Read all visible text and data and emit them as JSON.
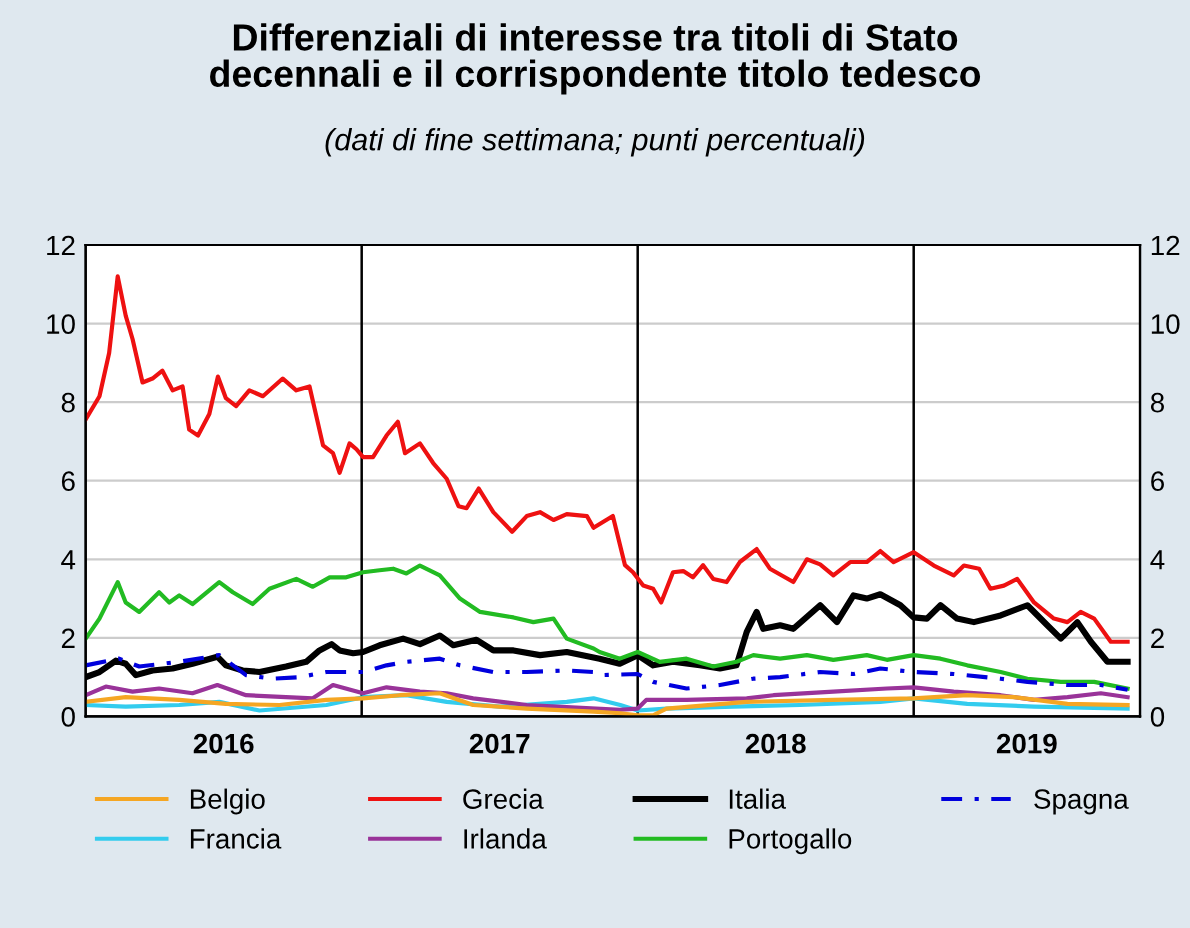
{
  "chart_data": {
    "type": "line",
    "title": "Differenziali di interesse tra titoli di Stato\ndecennali e il corrispondente titolo tedesco",
    "subtitle": "(dati di fine settimana; punti percentuali)",
    "xlim": [
      2016,
      2019.82
    ],
    "xticks": [
      {
        "value": 2016.5,
        "label": "2016"
      },
      {
        "value": 2017.5,
        "label": "2017"
      },
      {
        "value": 2018.5,
        "label": "2018"
      },
      {
        "value": 2019.41,
        "label": "2019"
      }
    ],
    "ylim": [
      0,
      12
    ],
    "yticks": [
      0,
      2,
      4,
      6,
      8,
      10,
      12
    ],
    "y2lim": [
      0,
      12
    ],
    "y2ticks": [
      0,
      2,
      4,
      6,
      8,
      10,
      12
    ],
    "grid": "y",
    "legend": "bottom",
    "ref_lines": [
      {
        "axis": "x",
        "value": 2017,
        "label": null,
        "color": "#000000"
      },
      {
        "axis": "x",
        "value": 2018,
        "label": null,
        "color": "#000000"
      },
      {
        "axis": "x",
        "value": 2019,
        "label": null,
        "color": "#000000"
      }
    ],
    "series": [
      {
        "name": "Belgio",
        "color": "#f5a623",
        "x": [
          2016.0,
          2016.145,
          2016.339,
          2016.508,
          2016.702,
          2016.872,
          2017.005,
          2017.138,
          2017.283,
          2017.404,
          2017.598,
          2017.84,
          2017.937,
          2018.0,
          2018.056,
          2018.104,
          2018.395,
          2018.709,
          2019.0,
          2019.194,
          2019.363,
          2019.557,
          2019.775
        ],
        "values": [
          0.37,
          0.49,
          0.42,
          0.32,
          0.29,
          0.42,
          0.46,
          0.54,
          0.59,
          0.29,
          0.2,
          0.12,
          0.08,
          0.03,
          0.03,
          0.2,
          0.37,
          0.42,
          0.46,
          0.54,
          0.49,
          0.32,
          0.29
        ]
      },
      {
        "name": "Francia",
        "color": "#33ccee",
        "x": [
          2016.0,
          2016.145,
          2016.339,
          2016.484,
          2016.63,
          2016.872,
          2017.005,
          2017.162,
          2017.308,
          2017.501,
          2017.743,
          2017.84,
          2017.937,
          2018.0,
          2018.104,
          2018.346,
          2018.588,
          2018.879,
          2019.0,
          2019.194,
          2019.436,
          2019.775
        ],
        "values": [
          0.29,
          0.25,
          0.29,
          0.37,
          0.15,
          0.29,
          0.49,
          0.54,
          0.37,
          0.25,
          0.37,
          0.46,
          0.29,
          0.15,
          0.2,
          0.25,
          0.29,
          0.37,
          0.46,
          0.32,
          0.25,
          0.2
        ]
      },
      {
        "name": "Grecia",
        "color": "#ee1111",
        "x": [
          2016.0,
          2016.05,
          2016.085,
          2016.116,
          2016.145,
          2016.17,
          2016.206,
          2016.242,
          2016.278,
          2016.315,
          2016.351,
          2016.375,
          2016.407,
          2016.448,
          2016.479,
          2016.508,
          2016.545,
          2016.593,
          2016.642,
          2016.714,
          2016.763,
          2016.811,
          2016.86,
          2016.896,
          2016.92,
          2016.956,
          2016.981,
          2017.005,
          2017.041,
          2017.09,
          2017.131,
          2017.157,
          2017.211,
          2017.259,
          2017.308,
          2017.351,
          2017.38,
          2017.424,
          2017.477,
          2017.545,
          2017.598,
          2017.646,
          2017.695,
          2017.743,
          2017.816,
          2017.84,
          2017.91,
          2017.954,
          2017.983,
          2018.02,
          2018.056,
          2018.085,
          2018.128,
          2018.165,
          2018.2,
          2018.237,
          2018.274,
          2018.322,
          2018.37,
          2018.431,
          2018.479,
          2018.564,
          2018.613,
          2018.661,
          2018.709,
          2018.77,
          2018.83,
          2018.879,
          2018.927,
          2019.0,
          2019.073,
          2019.145,
          2019.182,
          2019.237,
          2019.278,
          2019.327,
          2019.375,
          2019.436,
          2019.508,
          2019.557,
          2019.605,
          2019.654,
          2019.714,
          2019.775
        ],
        "values": [
          7.56,
          8.15,
          9.25,
          11.2,
          10.2,
          9.6,
          8.5,
          8.6,
          8.8,
          8.3,
          8.4,
          7.3,
          7.15,
          7.7,
          8.65,
          8.1,
          7.9,
          8.3,
          8.15,
          8.6,
          8.3,
          8.4,
          6.9,
          6.7,
          6.2,
          6.95,
          6.8,
          6.6,
          6.6,
          7.15,
          7.5,
          6.7,
          6.95,
          6.45,
          6.05,
          5.35,
          5.3,
          5.8,
          5.2,
          4.7,
          5.1,
          5.2,
          5.0,
          5.15,
          5.1,
          4.8,
          5.1,
          3.85,
          3.67,
          3.33,
          3.25,
          2.9,
          3.67,
          3.7,
          3.54,
          3.85,
          3.5,
          3.42,
          3.93,
          4.26,
          3.76,
          3.42,
          4.0,
          3.87,
          3.59,
          3.93,
          3.93,
          4.21,
          3.93,
          4.18,
          3.84,
          3.59,
          3.84,
          3.76,
          3.25,
          3.33,
          3.5,
          2.9,
          2.49,
          2.4,
          2.66,
          2.49,
          1.9,
          1.9
        ]
      },
      {
        "name": "Irlanda",
        "color": "#993399",
        "x": [
          2016.0,
          2016.073,
          2016.17,
          2016.266,
          2016.387,
          2016.477,
          2016.581,
          2016.726,
          2016.823,
          2016.896,
          2017.005,
          2017.09,
          2017.211,
          2017.308,
          2017.404,
          2017.598,
          2017.743,
          2017.937,
          2018.0,
          2018.031,
          2018.177,
          2018.395,
          2018.492,
          2018.709,
          2018.903,
          2019.0,
          2019.145,
          2019.315,
          2019.436,
          2019.557,
          2019.678,
          2019.775
        ],
        "values": [
          0.54,
          0.76,
          0.63,
          0.71,
          0.59,
          0.8,
          0.54,
          0.49,
          0.46,
          0.8,
          0.59,
          0.74,
          0.63,
          0.59,
          0.46,
          0.29,
          0.24,
          0.17,
          0.2,
          0.42,
          0.42,
          0.46,
          0.54,
          0.63,
          0.71,
          0.74,
          0.63,
          0.54,
          0.42,
          0.49,
          0.59,
          0.49
        ]
      },
      {
        "name": "Italia",
        "color": "#000000",
        "x": [
          2016.0,
          2016.05,
          2016.109,
          2016.145,
          2016.182,
          2016.242,
          2016.315,
          2016.387,
          2016.477,
          2016.508,
          2016.569,
          2016.63,
          2016.726,
          2016.799,
          2016.847,
          2016.891,
          2016.92,
          2016.969,
          2017.005,
          2017.065,
          2017.15,
          2017.211,
          2017.283,
          2017.332,
          2017.416,
          2017.477,
          2017.55,
          2017.646,
          2017.743,
          2017.862,
          2017.935,
          2018.0,
          2018.056,
          2018.128,
          2018.225,
          2018.298,
          2018.358,
          2018.395,
          2018.431,
          2018.455,
          2018.516,
          2018.564,
          2018.661,
          2018.722,
          2018.782,
          2018.83,
          2018.879,
          2018.952,
          2019.0,
          2019.048,
          2019.097,
          2019.157,
          2019.218,
          2019.315,
          2019.412,
          2019.484,
          2019.533,
          2019.593,
          2019.642,
          2019.702,
          2019.775
        ],
        "values": [
          1.0,
          1.13,
          1.42,
          1.34,
          1.05,
          1.17,
          1.22,
          1.34,
          1.52,
          1.3,
          1.17,
          1.13,
          1.27,
          1.39,
          1.68,
          1.84,
          1.68,
          1.61,
          1.64,
          1.81,
          1.98,
          1.84,
          2.06,
          1.81,
          1.95,
          1.68,
          1.68,
          1.56,
          1.64,
          1.47,
          1.34,
          1.56,
          1.3,
          1.39,
          1.3,
          1.22,
          1.3,
          2.15,
          2.66,
          2.23,
          2.32,
          2.23,
          2.83,
          2.4,
          3.08,
          3.0,
          3.11,
          2.83,
          2.52,
          2.49,
          2.83,
          2.49,
          2.4,
          2.57,
          2.83,
          2.32,
          1.98,
          2.4,
          1.9,
          1.39,
          1.39
        ]
      },
      {
        "name": "Portogallo",
        "color": "#22bb22",
        "x": [
          2016.0,
          2016.05,
          2016.116,
          2016.145,
          2016.194,
          2016.266,
          2016.303,
          2016.339,
          2016.387,
          2016.484,
          2016.533,
          2016.605,
          2016.666,
          2016.763,
          2016.823,
          2016.884,
          2016.944,
          2017.005,
          2017.065,
          2017.114,
          2017.162,
          2017.211,
          2017.283,
          2017.356,
          2017.429,
          2017.55,
          2017.622,
          2017.695,
          2017.743,
          2017.84,
          2017.862,
          2017.935,
          2018.0,
          2018.08,
          2018.177,
          2018.274,
          2018.358,
          2018.419,
          2018.516,
          2018.613,
          2018.709,
          2018.83,
          2018.903,
          2019.0,
          2019.097,
          2019.194,
          2019.315,
          2019.412,
          2019.533,
          2019.654,
          2019.775
        ],
        "values": [
          1.98,
          2.49,
          3.42,
          2.9,
          2.66,
          3.16,
          2.9,
          3.08,
          2.86,
          3.42,
          3.16,
          2.86,
          3.25,
          3.5,
          3.3,
          3.54,
          3.54,
          3.67,
          3.72,
          3.76,
          3.64,
          3.84,
          3.59,
          3.0,
          2.66,
          2.52,
          2.4,
          2.49,
          1.98,
          1.73,
          1.64,
          1.47,
          1.64,
          1.39,
          1.47,
          1.27,
          1.39,
          1.56,
          1.47,
          1.56,
          1.44,
          1.56,
          1.44,
          1.56,
          1.47,
          1.3,
          1.13,
          0.96,
          0.88,
          0.88,
          0.71
        ]
      },
      {
        "name": "Spagna",
        "color": "#0000dd",
        "line_style": "dashed",
        "x": [
          2016.0,
          2016.121,
          2016.194,
          2016.339,
          2016.484,
          2016.581,
          2016.678,
          2016.775,
          2016.872,
          2017.005,
          2017.09,
          2017.162,
          2017.283,
          2017.356,
          2017.477,
          2017.598,
          2017.743,
          2017.84,
          2017.862,
          2018.0,
          2018.056,
          2018.177,
          2018.298,
          2018.419,
          2018.516,
          2018.661,
          2018.782,
          2018.879,
          2019.0,
          2019.145,
          2019.315,
          2019.412,
          2019.557,
          2019.678,
          2019.775
        ],
        "values": [
          1.3,
          1.47,
          1.27,
          1.39,
          1.56,
          1.05,
          0.96,
          1.0,
          1.13,
          1.13,
          1.3,
          1.39,
          1.47,
          1.3,
          1.13,
          1.13,
          1.17,
          1.13,
          1.05,
          1.08,
          0.88,
          0.71,
          0.8,
          0.96,
          1.0,
          1.13,
          1.08,
          1.22,
          1.13,
          1.08,
          0.96,
          0.88,
          0.8,
          0.8,
          0.68
        ]
      }
    ]
  }
}
